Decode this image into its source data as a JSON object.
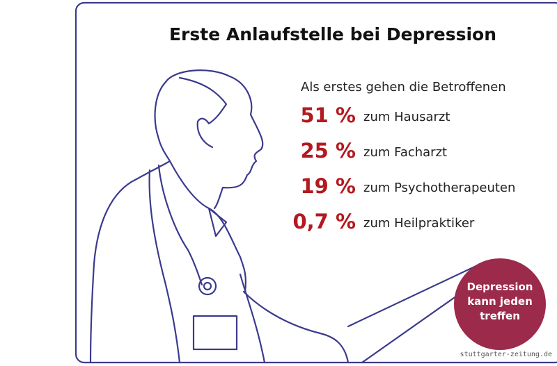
{
  "header": {
    "title": "Erste Anlaufstelle bei Depression",
    "intro": "Als erstes gehen die Betroffenen"
  },
  "stats": [
    {
      "share": "51 %",
      "label": "zum Hausarzt"
    },
    {
      "share": "25 %",
      "label": "zum Facharzt"
    },
    {
      "share": "19 %",
      "label": "zum Psychotherapeuten"
    },
    {
      "share": "0,7 %",
      "label": "zum Heilpraktiker"
    }
  ],
  "badge": {
    "lines": [
      "Depression",
      "kann jeden",
      "treffen"
    ]
  },
  "source": "stuttgarter-zeitung.de"
}
